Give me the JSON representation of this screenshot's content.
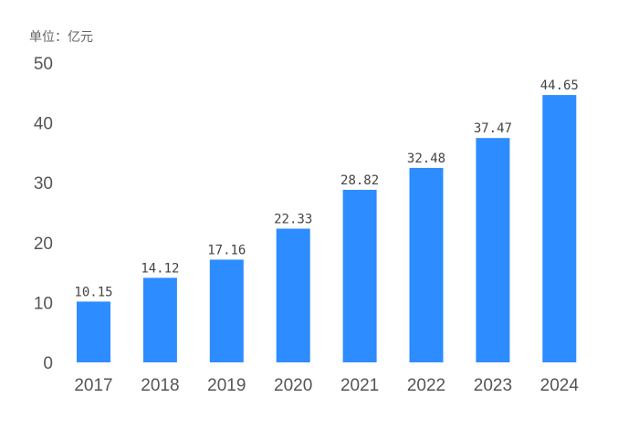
{
  "chart_data": {
    "type": "bar",
    "unit_label": "单位：亿元",
    "categories": [
      "2017",
      "2018",
      "2019",
      "2020",
      "2021",
      "2022",
      "2023",
      "2024"
    ],
    "values": [
      10.15,
      14.12,
      17.16,
      22.33,
      28.82,
      32.48,
      37.47,
      44.65
    ],
    "data_labels": [
      "10.15",
      "14.12",
      "17.16",
      "22.33",
      "28.82",
      "32.48",
      "37.47",
      "44.65"
    ],
    "ylim": [
      0,
      50
    ],
    "yticks": [
      "0",
      "10",
      "20",
      "30",
      "40",
      "50"
    ],
    "grid": false,
    "bar_color": "#2d8cff"
  }
}
